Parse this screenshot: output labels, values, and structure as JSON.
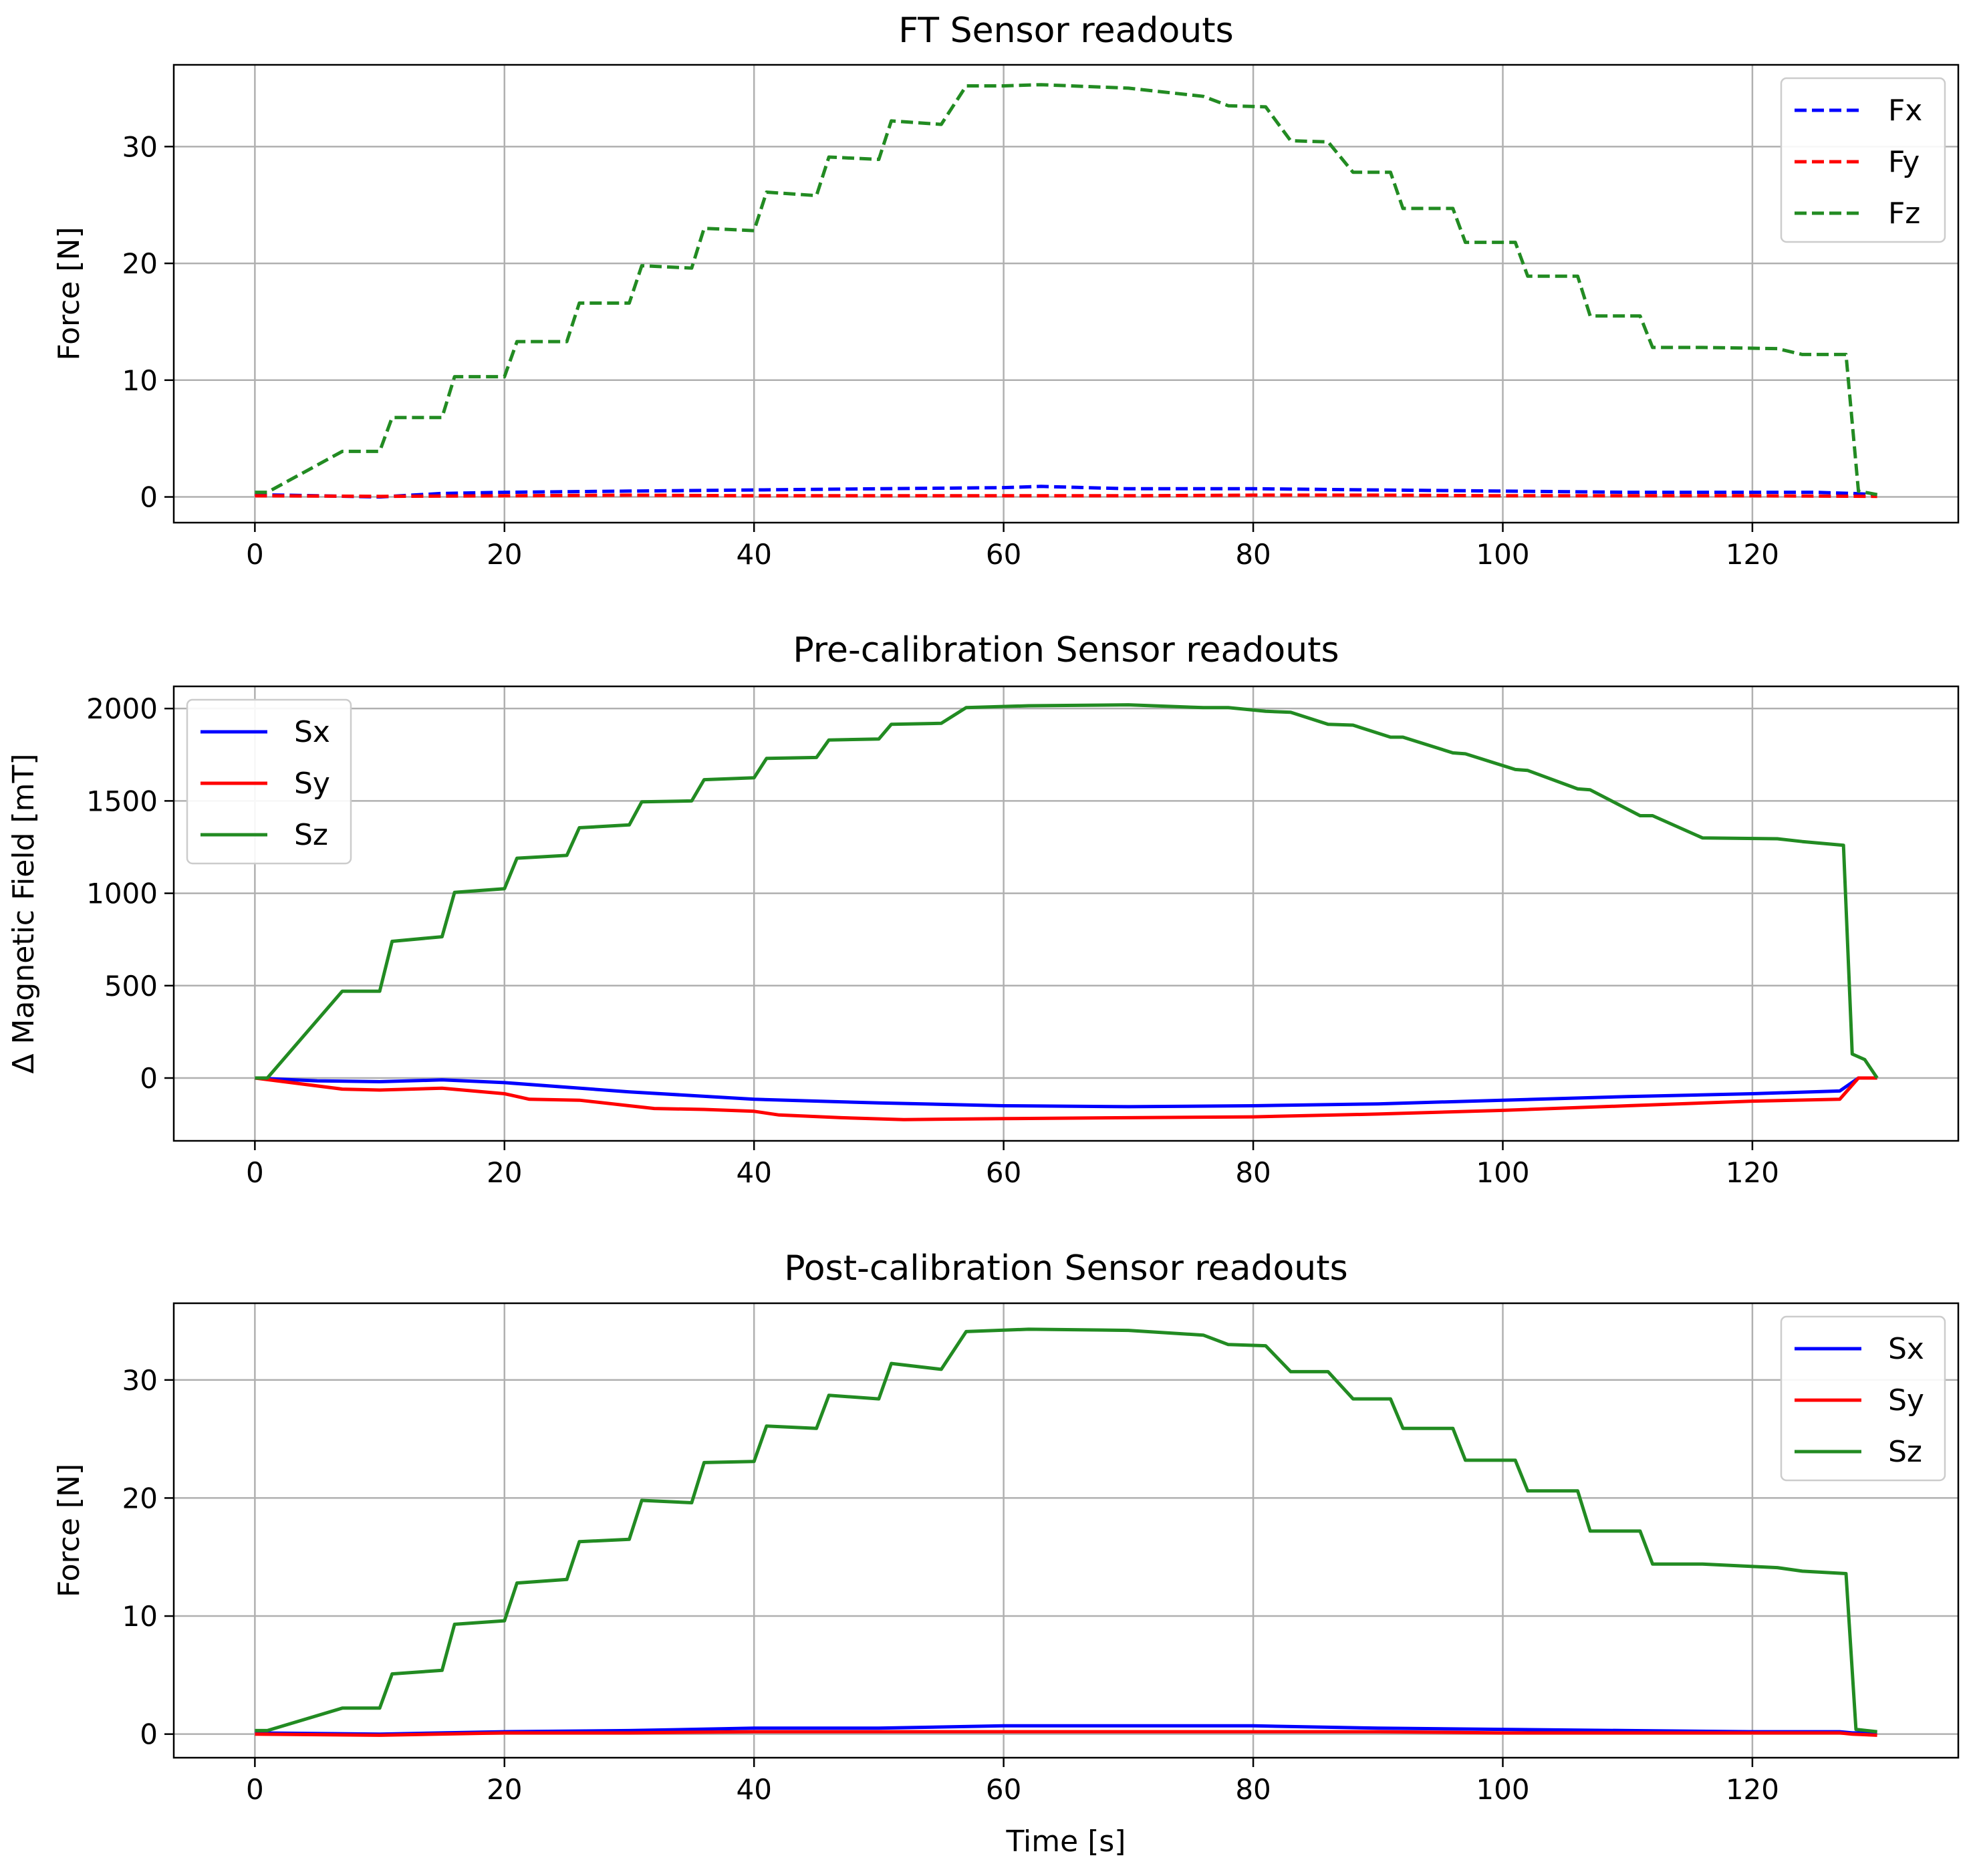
{
  "chart_data": [
    {
      "type": "line",
      "title": "FT Sensor readouts",
      "xlabel": "",
      "ylabel": "Force [N]",
      "xlim": [
        -6.5,
        136.5
      ],
      "ylim": [
        -2.2,
        37
      ],
      "xticks": [
        0,
        20,
        40,
        60,
        80,
        100,
        120
      ],
      "yticks": [
        0,
        10,
        20,
        30
      ],
      "grid": true,
      "legend": "top-right",
      "series": [
        {
          "name": "Fx",
          "style": "dashed",
          "color": "#0000ff",
          "x": [
            0,
            5,
            10,
            15,
            20,
            30,
            40,
            50,
            60,
            63,
            70,
            80,
            90,
            100,
            110,
            120,
            125,
            128,
            130
          ],
          "y": [
            0.2,
            0.1,
            0.0,
            0.3,
            0.4,
            0.5,
            0.6,
            0.7,
            0.8,
            0.9,
            0.7,
            0.7,
            0.6,
            0.5,
            0.4,
            0.4,
            0.4,
            0.3,
            0.2
          ]
        },
        {
          "name": "Fy",
          "style": "dashed",
          "color": "#ff0000",
          "x": [
            0,
            10,
            20,
            30,
            40,
            50,
            60,
            70,
            80,
            90,
            100,
            110,
            120,
            130
          ],
          "y": [
            0.1,
            0.05,
            0.1,
            0.15,
            0.1,
            0.1,
            0.1,
            0.1,
            0.15,
            0.15,
            0.1,
            0.1,
            0.1,
            0.05
          ]
        },
        {
          "name": "Fz",
          "style": "dashed",
          "color": "#228b22",
          "x": [
            0,
            1,
            7,
            10,
            11,
            15,
            16,
            20,
            21,
            25,
            26,
            30,
            31,
            35,
            36,
            40,
            41,
            45,
            46,
            50,
            51,
            55,
            57,
            60,
            63,
            70,
            76,
            78,
            81,
            83,
            86,
            88,
            91,
            92,
            96,
            97,
            101,
            102,
            106,
            107,
            111,
            112,
            116,
            122,
            124,
            127.5,
            128.5,
            130
          ],
          "y": [
            0.4,
            0.4,
            3.9,
            3.9,
            6.8,
            6.8,
            10.3,
            10.3,
            13.3,
            13.3,
            16.6,
            16.6,
            19.8,
            19.6,
            23.0,
            22.8,
            26.1,
            25.8,
            29.1,
            28.9,
            32.2,
            31.9,
            35.2,
            35.2,
            35.3,
            35.0,
            34.3,
            33.5,
            33.4,
            30.5,
            30.4,
            27.8,
            27.8,
            24.7,
            24.7,
            21.8,
            21.8,
            18.9,
            18.9,
            15.5,
            15.5,
            12.8,
            12.8,
            12.7,
            12.2,
            12.2,
            0.5,
            0.2
          ]
        }
      ]
    },
    {
      "type": "line",
      "title": "Pre-calibration Sensor readouts",
      "xlabel": "",
      "ylabel": "Δ Magnetic Field [mT]",
      "xlim": [
        -6.5,
        136.5
      ],
      "ylim": [
        -340,
        2120
      ],
      "xticks": [
        0,
        20,
        40,
        60,
        80,
        100,
        120
      ],
      "yticks": [
        0,
        500,
        1000,
        1500,
        2000
      ],
      "grid": true,
      "legend": "top-left",
      "series": [
        {
          "name": "Sx",
          "style": "solid",
          "color": "#0000ff",
          "x": [
            0,
            5,
            10,
            15,
            20,
            30,
            40,
            50,
            60,
            70,
            80,
            90,
            100,
            110,
            120,
            127,
            128.5,
            130
          ],
          "y": [
            0,
            -15,
            -20,
            -10,
            -25,
            -75,
            -115,
            -135,
            -150,
            -155,
            -150,
            -140,
            -120,
            -100,
            -85,
            -70,
            0,
            0
          ]
        },
        {
          "name": "Sy",
          "style": "solid",
          "color": "#ff0000",
          "x": [
            0,
            7,
            10,
            15,
            20,
            22,
            26,
            30,
            32,
            36,
            40,
            42,
            47,
            52,
            60,
            70,
            80,
            90,
            100,
            110,
            120,
            127,
            128.5,
            130
          ],
          "y": [
            0,
            -60,
            -65,
            -55,
            -85,
            -115,
            -120,
            -150,
            -165,
            -170,
            -180,
            -200,
            -215,
            -225,
            -220,
            -215,
            -210,
            -195,
            -175,
            -150,
            -125,
            -115,
            0,
            0
          ]
        },
        {
          "name": "Sz",
          "style": "solid",
          "color": "#228b22",
          "x": [
            0,
            1,
            7,
            10,
            11,
            15,
            16,
            20,
            21,
            25,
            26,
            30,
            31,
            35,
            36,
            40,
            41,
            45,
            46,
            50,
            51,
            55,
            57,
            62,
            70,
            76,
            78,
            81,
            83,
            86,
            88,
            91,
            92,
            96,
            97,
            101,
            102,
            106,
            107,
            111,
            112,
            116,
            122,
            124,
            127.3,
            128,
            129,
            130
          ],
          "y": [
            0,
            0,
            470,
            470,
            740,
            765,
            1005,
            1025,
            1190,
            1205,
            1355,
            1370,
            1495,
            1500,
            1615,
            1625,
            1730,
            1735,
            1830,
            1835,
            1915,
            1920,
            2005,
            2015,
            2020,
            2005,
            2005,
            1985,
            1980,
            1915,
            1910,
            1845,
            1845,
            1760,
            1755,
            1670,
            1665,
            1565,
            1560,
            1420,
            1420,
            1300,
            1295,
            1280,
            1260,
            130,
            100,
            0
          ]
        }
      ]
    },
    {
      "type": "line",
      "title": "Post-calibration Sensor readouts",
      "xlabel": "Time [s]",
      "ylabel": "Force [N]",
      "xlim": [
        -6.5,
        136.5
      ],
      "ylim": [
        -2.0,
        36.5
      ],
      "xticks": [
        0,
        20,
        40,
        60,
        80,
        100,
        120
      ],
      "yticks": [
        0,
        10,
        20,
        30
      ],
      "grid": true,
      "legend": "top-right",
      "series": [
        {
          "name": "Sx",
          "style": "solid",
          "color": "#0000ff",
          "x": [
            0,
            10,
            20,
            30,
            40,
            50,
            60,
            70,
            80,
            90,
            100,
            110,
            120,
            127,
            128,
            130
          ],
          "y": [
            0.1,
            0.0,
            0.2,
            0.3,
            0.5,
            0.5,
            0.7,
            0.7,
            0.7,
            0.5,
            0.4,
            0.3,
            0.2,
            0.2,
            0.1,
            0.1
          ]
        },
        {
          "name": "Sy",
          "style": "solid",
          "color": "#ff0000",
          "x": [
            0,
            10,
            20,
            30,
            40,
            50,
            60,
            70,
            80,
            90,
            100,
            110,
            120,
            127,
            128,
            130
          ],
          "y": [
            0.0,
            -0.1,
            0.1,
            0.1,
            0.2,
            0.2,
            0.2,
            0.2,
            0.2,
            0.2,
            0.1,
            0.1,
            0.1,
            0.1,
            0.0,
            -0.1
          ]
        },
        {
          "name": "Sz",
          "style": "solid",
          "color": "#228b22",
          "x": [
            0,
            1,
            7,
            10,
            11,
            15,
            16,
            20,
            21,
            25,
            26,
            30,
            31,
            35,
            36,
            40,
            41,
            45,
            46,
            50,
            51,
            55,
            57,
            62,
            70,
            76,
            78,
            81,
            83,
            86,
            88,
            91,
            92,
            96,
            97,
            101,
            102,
            106,
            107,
            111,
            112,
            116,
            122,
            124,
            127.5,
            128.3,
            130
          ],
          "y": [
            0.3,
            0.3,
            2.2,
            2.2,
            5.1,
            5.4,
            9.3,
            9.6,
            12.8,
            13.1,
            16.3,
            16.5,
            19.8,
            19.6,
            23.0,
            23.1,
            26.1,
            25.9,
            28.7,
            28.4,
            31.4,
            30.9,
            34.1,
            34.3,
            34.2,
            33.8,
            33.0,
            32.9,
            30.7,
            30.7,
            28.4,
            28.4,
            25.9,
            25.9,
            23.2,
            23.2,
            20.6,
            20.6,
            17.2,
            17.2,
            14.4,
            14.4,
            14.1,
            13.8,
            13.6,
            0.4,
            0.2
          ]
        }
      ]
    }
  ]
}
